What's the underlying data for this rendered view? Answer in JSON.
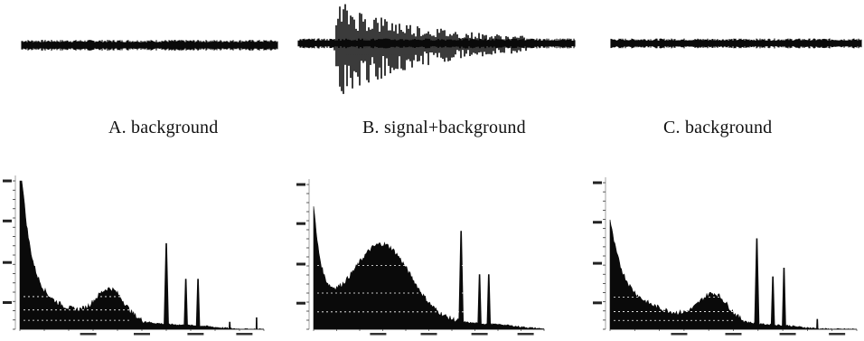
{
  "captions": {
    "a": "A. background",
    "b": "B. signal+background",
    "c": "C. background"
  },
  "colors": {
    "trace": "#0a0a0a",
    "background": "#ffffff"
  }
}
